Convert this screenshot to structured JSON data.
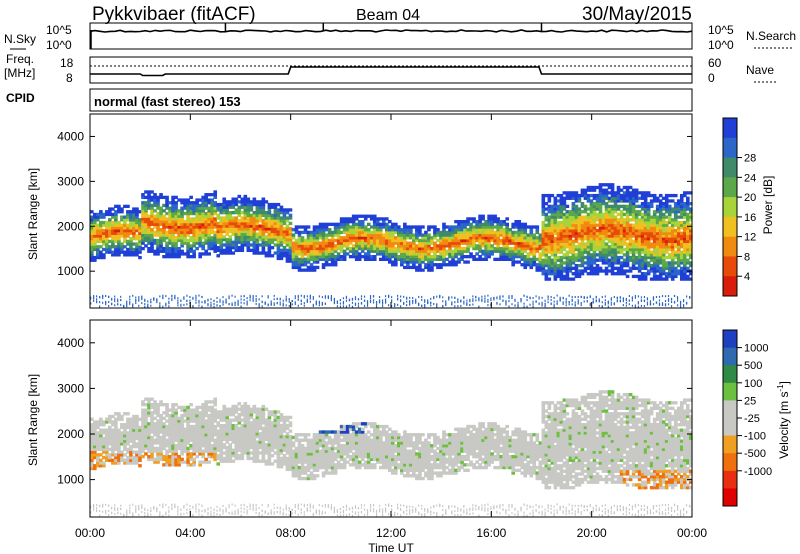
{
  "header": {
    "station": "Pykkvibaer (fitACF)",
    "beam": "Beam 04",
    "date": "30/May/2015"
  },
  "noise_panel": {
    "left_label": "N.Sky",
    "left_ticks": [
      "10^5",
      "10^0"
    ],
    "right_ticks": [
      "10^5",
      "10^0"
    ],
    "right_label": "N.Search"
  },
  "freq_panel": {
    "left_label_line1": "Freq.",
    "left_label_line2": "[MHz]",
    "left_ticks": [
      "18",
      "8"
    ],
    "right_ticks": [
      "60",
      "0"
    ],
    "right_label": "Nave"
  },
  "cpid": {
    "label": "CPID",
    "text": "normal (fast stereo) 153"
  },
  "time_axis": {
    "ticks": [
      "00:00",
      "04:00",
      "08:00",
      "12:00",
      "16:00",
      "20:00",
      "00:00"
    ],
    "label": "Time UT"
  },
  "range_ticks": [
    "1000",
    "2000",
    "3000",
    "4000"
  ],
  "chart_data": [
    {
      "type": "heatmap",
      "name": "power",
      "ylabel": "Slant Range [km]",
      "xlabel": "Time UT",
      "ylim": [
        180,
        4500
      ],
      "xlim": [
        0,
        24
      ],
      "colorbar_label": "Power [dB]",
      "colorbar_ticks": [
        "4",
        "8",
        "12",
        "16",
        "20",
        "24",
        "28"
      ],
      "colorbar_colors": [
        "#1f3fd6",
        "#2b67c8",
        "#3e8a6a",
        "#5aa84a",
        "#a8d43a",
        "#f0c020",
        "#f08a10",
        "#e84a0a",
        "#d81e0a"
      ],
      "echo_bands_km": [
        {
          "t": [
            0,
            2
          ],
          "range": [
            1300,
            2200
          ]
        },
        {
          "t": [
            2,
            5
          ],
          "range": [
            1500,
            2600
          ]
        },
        {
          "t": [
            5,
            8
          ],
          "range": [
            1400,
            2400
          ]
        },
        {
          "t": [
            8,
            18
          ],
          "range": [
            1200,
            2000
          ]
        },
        {
          "t": [
            18,
            24
          ],
          "range": [
            1000,
            2600
          ]
        }
      ]
    },
    {
      "type": "heatmap",
      "name": "velocity",
      "ylabel": "Slant Range [km]",
      "xlabel": "Time UT",
      "ylim": [
        180,
        4500
      ],
      "xlim": [
        0,
        24
      ],
      "colorbar_label": "Velocity [m s^-1]",
      "colorbar_ticks": [
        "1000",
        "500",
        "100",
        "25",
        "-25",
        "-100",
        "-500",
        "-1000"
      ],
      "colorbar_colors": [
        "#1e3fc0",
        "#2d6ab0",
        "#2f8a45",
        "#6cc040",
        "#c8c8c4",
        "#c8c8c4",
        "#f0a020",
        "#f07010",
        "#e83010",
        "#e00000"
      ]
    }
  ]
}
